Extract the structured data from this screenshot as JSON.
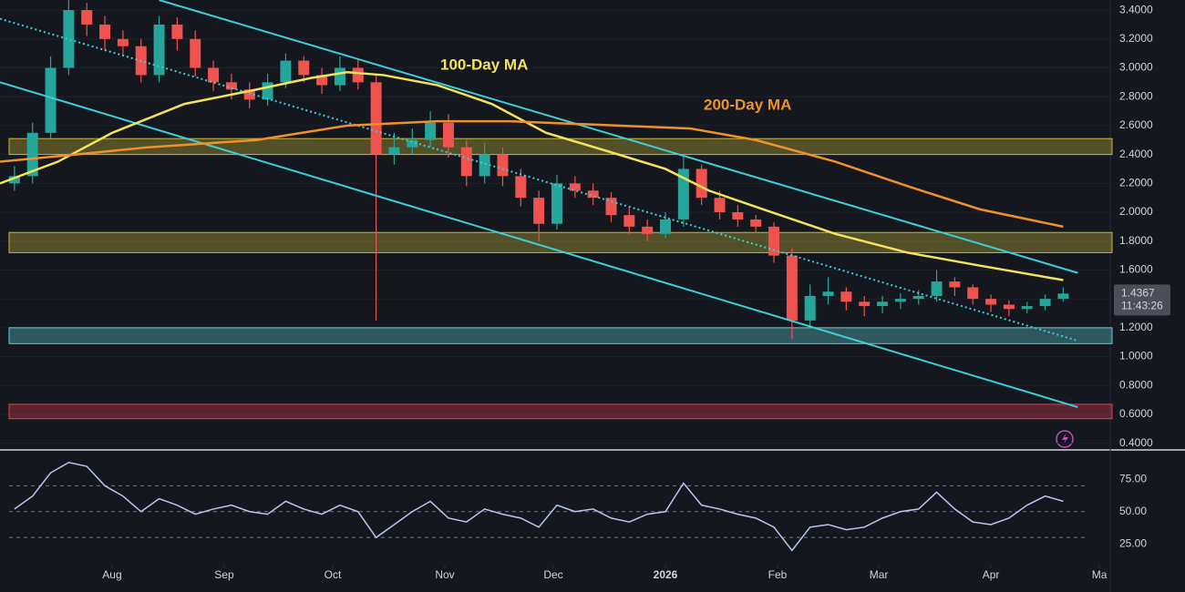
{
  "chart_data": [
    {
      "type": "candlestick",
      "x": [
        -27,
        -22,
        -17,
        -12,
        -7,
        -2,
        3,
        8,
        13,
        18,
        23,
        28,
        33,
        38,
        43,
        48,
        53,
        58,
        63,
        68,
        73,
        78,
        83,
        88,
        93,
        98,
        103,
        108,
        113,
        118,
        123,
        128,
        133,
        138,
        143,
        148,
        153,
        158,
        163,
        168,
        173,
        178,
        183,
        188,
        193,
        198,
        203,
        208,
        213,
        218,
        223,
        228,
        233,
        238,
        243,
        248,
        253,
        258,
        263
      ],
      "open": [
        2.2,
        2.25,
        2.55,
        3.0,
        3.4,
        3.3,
        3.2,
        3.15,
        2.95,
        3.3,
        3.2,
        3.0,
        2.9,
        2.85,
        2.78,
        2.9,
        3.05,
        2.95,
        2.88,
        3.0,
        2.9,
        2.4,
        2.45,
        2.5,
        2.62,
        2.45,
        2.25,
        2.4,
        2.25,
        2.1,
        1.92,
        2.2,
        2.15,
        2.1,
        1.98,
        1.9,
        1.85,
        1.95,
        2.3,
        2.1,
        2.0,
        1.95,
        1.9,
        1.7,
        1.25,
        1.42,
        1.45,
        1.38,
        1.35,
        1.38,
        1.4,
        1.42,
        1.52,
        1.48,
        1.4,
        1.36,
        1.33,
        1.35,
        1.4
      ],
      "high": [
        2.32,
        2.62,
        3.08,
        3.47,
        3.45,
        3.36,
        3.26,
        3.2,
        3.36,
        3.35,
        3.26,
        3.05,
        2.96,
        2.9,
        2.96,
        3.1,
        3.08,
        3.0,
        3.08,
        3.06,
        2.95,
        2.55,
        2.58,
        2.7,
        2.68,
        2.5,
        2.48,
        2.45,
        2.3,
        2.15,
        2.26,
        2.25,
        2.2,
        2.14,
        2.03,
        1.95,
        2.0,
        2.4,
        2.33,
        2.15,
        2.05,
        1.98,
        1.93,
        1.75,
        1.5,
        1.55,
        1.48,
        1.42,
        1.42,
        1.44,
        1.46,
        1.6,
        1.55,
        1.5,
        1.43,
        1.39,
        1.38,
        1.43,
        1.48
      ],
      "low": [
        2.15,
        2.2,
        2.5,
        2.95,
        3.22,
        3.12,
        3.08,
        2.9,
        2.9,
        3.12,
        2.94,
        2.84,
        2.78,
        2.72,
        2.74,
        2.86,
        2.9,
        2.82,
        2.84,
        2.85,
        1.25,
        2.33,
        2.4,
        2.45,
        2.38,
        2.18,
        2.2,
        2.18,
        2.04,
        1.8,
        1.88,
        2.1,
        2.05,
        1.93,
        1.85,
        1.8,
        1.82,
        1.9,
        2.05,
        1.95,
        1.9,
        1.86,
        1.65,
        1.12,
        1.2,
        1.36,
        1.32,
        1.28,
        1.3,
        1.33,
        1.36,
        1.38,
        1.42,
        1.36,
        1.31,
        1.28,
        1.3,
        1.32,
        1.38
      ],
      "close": [
        2.25,
        2.55,
        3.0,
        3.4,
        3.3,
        3.2,
        3.15,
        2.95,
        3.3,
        3.2,
        3.0,
        2.9,
        2.85,
        2.78,
        2.9,
        3.05,
        2.95,
        2.88,
        3.0,
        2.9,
        2.4,
        2.45,
        2.5,
        2.62,
        2.45,
        2.25,
        2.4,
        2.25,
        2.1,
        1.92,
        2.2,
        2.15,
        2.1,
        1.98,
        1.9,
        1.85,
        1.95,
        2.3,
        2.1,
        2.0,
        1.95,
        1.9,
        1.7,
        1.25,
        1.42,
        1.45,
        1.38,
        1.35,
        1.38,
        1.4,
        1.42,
        1.52,
        1.48,
        1.4,
        1.36,
        1.33,
        1.35,
        1.4,
        1.4367
      ],
      "up_color": "#26a69a",
      "down_color": "#ef5350",
      "xlim": [
        -31,
        276
      ],
      "ylim": [
        0.36,
        3.47
      ],
      "yticks": [
        {
          "value": 0.4,
          "label": "0.4000"
        },
        {
          "value": 0.6,
          "label": "0.6000"
        },
        {
          "value": 0.8,
          "label": "0.8000"
        },
        {
          "value": 1.0,
          "label": "1.0000"
        },
        {
          "value": 1.2,
          "label": "1.2000"
        },
        {
          "value": 1.4,
          "label": "1.4000"
        },
        {
          "value": 1.6,
          "label": "1.6000"
        },
        {
          "value": 1.8,
          "label": "1.8000"
        },
        {
          "value": 2.0,
          "label": "2.0000"
        },
        {
          "value": 2.2,
          "label": "2.2000"
        },
        {
          "value": 2.4,
          "label": "2.4000"
        },
        {
          "value": 2.6,
          "label": "2.6000"
        },
        {
          "value": 2.8,
          "label": "2.8000"
        },
        {
          "value": 3.0,
          "label": "3.0000"
        },
        {
          "value": 3.2,
          "label": "3.2000"
        },
        {
          "value": 3.4,
          "label": "3.4000"
        }
      ],
      "lines": [
        {
          "name": "100-Day MA",
          "color": "#f3e35a",
          "x": [
            -31,
            -15,
            0,
            20,
            40,
            55,
            65,
            75,
            90,
            105,
            120,
            140,
            153,
            165,
            180,
            200,
            220,
            240,
            263
          ],
          "values": [
            2.2,
            2.35,
            2.55,
            2.75,
            2.85,
            2.93,
            2.97,
            2.95,
            2.88,
            2.75,
            2.55,
            2.4,
            2.3,
            2.15,
            2.02,
            1.85,
            1.72,
            1.63,
            1.53
          ]
        },
        {
          "name": "200-Day MA",
          "color": "#f0922a",
          "x": [
            -31,
            -10,
            10,
            40,
            65,
            90,
            110,
            140,
            160,
            178,
            200,
            220,
            240,
            263
          ],
          "values": [
            2.35,
            2.4,
            2.45,
            2.5,
            2.6,
            2.63,
            2.63,
            2.6,
            2.58,
            2.5,
            2.35,
            2.18,
            2.02,
            1.9
          ]
        }
      ],
      "trend_lines": [
        {
          "color": "#3ccfd6",
          "dashed": false,
          "x": [
            13,
            267
          ],
          "values": [
            3.47,
            1.58
          ]
        },
        {
          "color": "#3ccfd6",
          "dashed": false,
          "x": [
            -31,
            267
          ],
          "values": [
            2.9,
            0.65
          ]
        },
        {
          "color": "#3ccfd6",
          "dashed": true,
          "x": [
            -31,
            267
          ],
          "values": [
            3.34,
            1.11
          ]
        }
      ],
      "zones": [
        {
          "range": [
            2.4,
            2.51
          ],
          "color": "#c8b83a"
        },
        {
          "range": [
            1.72,
            1.86
          ],
          "color": "#c8b83a"
        },
        {
          "range": [
            1.09,
            1.2
          ],
          "color": "#5fd0d8"
        },
        {
          "range": [
            0.57,
            0.67
          ],
          "color": "#e04050"
        }
      ],
      "last_price": 1.4367,
      "countdown": "11:43:26"
    },
    {
      "type": "line",
      "x": [
        -27,
        -22,
        -17,
        -12,
        -7,
        -2,
        3,
        8,
        13,
        18,
        23,
        28,
        33,
        38,
        43,
        48,
        53,
        58,
        63,
        68,
        73,
        78,
        83,
        88,
        93,
        98,
        103,
        108,
        113,
        118,
        123,
        128,
        133,
        138,
        143,
        148,
        153,
        158,
        163,
        168,
        173,
        178,
        183,
        188,
        193,
        198,
        203,
        208,
        213,
        218,
        223,
        228,
        233,
        238,
        243,
        248,
        253,
        258,
        263
      ],
      "values": [
        52,
        62,
        80,
        88,
        85,
        70,
        62,
        50,
        60,
        55,
        48,
        52,
        55,
        50,
        48,
        58,
        52,
        48,
        55,
        50,
        30,
        40,
        50,
        58,
        45,
        42,
        52,
        48,
        45,
        38,
        55,
        50,
        52,
        45,
        42,
        48,
        50,
        72,
        55,
        52,
        48,
        45,
        38,
        20,
        38,
        40,
        36,
        38,
        45,
        50,
        52,
        65,
        52,
        42,
        40,
        45,
        55,
        62,
        58
      ],
      "color": "#b9c7f0",
      "bands": [
        30,
        50,
        70
      ],
      "xlim": [
        -31,
        276
      ],
      "ylim": [
        9,
        97
      ],
      "yticks": [
        {
          "value": 25,
          "label": "25.00"
        },
        {
          "value": 50,
          "label": "50.00"
        },
        {
          "value": 75,
          "label": "75.00"
        }
      ],
      "xticks": [
        {
          "value": 0,
          "label": "Aug"
        },
        {
          "value": 31,
          "label": "Sep"
        },
        {
          "value": 61,
          "label": "Oct"
        },
        {
          "value": 92,
          "label": "Nov"
        },
        {
          "value": 122,
          "label": "Dec"
        },
        {
          "value": 153,
          "label": "2026"
        },
        {
          "value": 184,
          "label": "Feb"
        },
        {
          "value": 212,
          "label": "Mar"
        },
        {
          "value": 243,
          "label": "Apr"
        },
        {
          "value": 273,
          "label": "Ma"
        }
      ]
    }
  ]
}
